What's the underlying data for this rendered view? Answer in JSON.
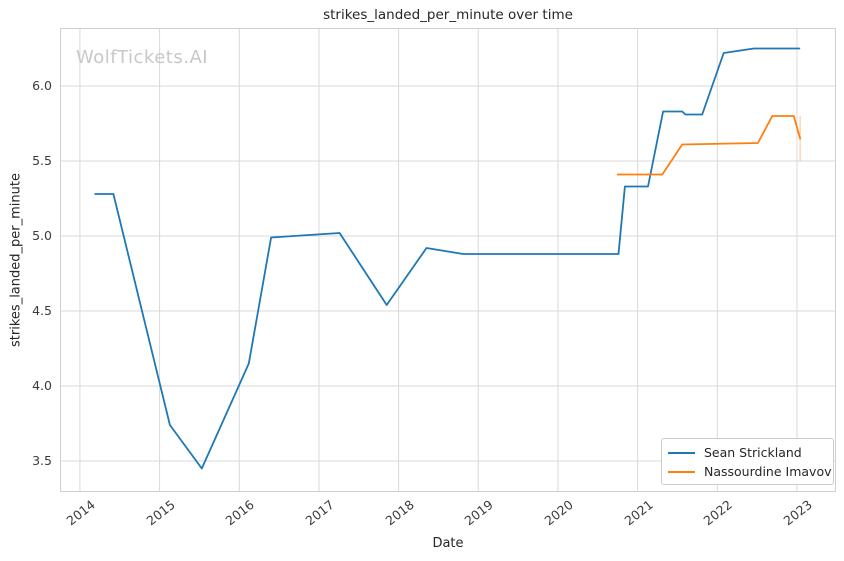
{
  "watermark": "WolfTickets.AI",
  "colors": {
    "series_blue": "#1f77b4",
    "series_orange": "#ff7f0e",
    "grid": "#d9d9d9",
    "frame": "#cfcfcf",
    "text": "#262626",
    "tick_text": "#3b3b3b",
    "watermark": "#c8c8c8",
    "legend_border": "#cccccc",
    "background": "#ffffff"
  },
  "chart_data": {
    "type": "line",
    "title": "strikes_landed_per_minute over time",
    "xlabel": "Date",
    "ylabel": "strikes_landed_per_minute",
    "grid": true,
    "legend_position": "lower right",
    "xlim": [
      2013.75,
      2023.49
    ],
    "ylim": [
      3.293,
      6.387
    ],
    "x_ticks": [
      2014,
      2015,
      2016,
      2017,
      2018,
      2019,
      2020,
      2021,
      2022,
      2023
    ],
    "y_ticks": [
      3.5,
      4.0,
      4.5,
      5.0,
      5.5,
      6.0
    ],
    "series": [
      {
        "name": "Sean Strickland",
        "color": "#1f77b4",
        "x": [
          2014.19,
          2014.42,
          2015.13,
          2015.53,
          2016.12,
          2016.4,
          2017.26,
          2017.85,
          2018.35,
          2018.81,
          2020.76,
          2020.84,
          2021.13,
          2021.32,
          2021.56,
          2021.6,
          2021.81,
          2022.08,
          2022.46,
          2023.03
        ],
        "y": [
          5.28,
          5.28,
          3.74,
          3.45,
          4.15,
          4.99,
          5.02,
          4.54,
          4.92,
          4.88,
          4.88,
          5.33,
          5.33,
          5.83,
          5.83,
          5.81,
          5.81,
          6.22,
          6.25,
          6.25
        ]
      },
      {
        "name": "Nassourdine Imavov",
        "color": "#ff7f0e",
        "x": [
          2020.75,
          2021.31,
          2021.56,
          2022.51,
          2022.69,
          2022.96,
          2023.04
        ],
        "y": [
          5.41,
          5.41,
          5.61,
          5.62,
          5.8,
          5.8,
          5.65
        ]
      }
    ],
    "end_marker": {
      "x": 2023.04,
      "y_from": 5.8,
      "y_to": 5.5,
      "color": "#ff7f0e",
      "opacity": 0.3
    }
  }
}
